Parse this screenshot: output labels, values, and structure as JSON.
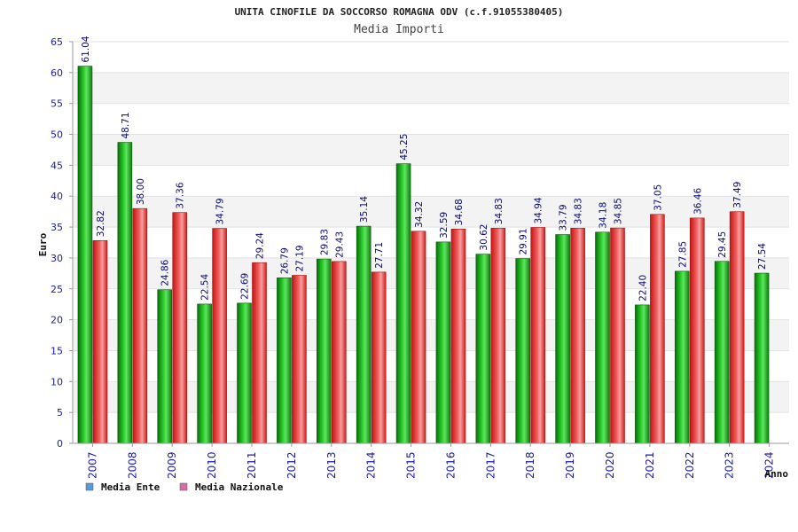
{
  "chart_data": {
    "type": "bar",
    "title": "UNITA CINOFILE DA SOCCORSO ROMAGNA ODV (c.f.91055380405)",
    "subtitle": "Media Importi",
    "xlabel": "Anno",
    "ylabel": "Euro",
    "ylim": [
      0,
      65
    ],
    "yticks": [
      0,
      5,
      10,
      15,
      20,
      25,
      30,
      35,
      40,
      45,
      50,
      55,
      60,
      65
    ],
    "grid": true,
    "legend_position": "bottom-left",
    "categories": [
      "2007",
      "2008",
      "2009",
      "2010",
      "2011",
      "2012",
      "2013",
      "2014",
      "2015",
      "2016",
      "2017",
      "2018",
      "2019",
      "2020",
      "2021",
      "2022",
      "2023",
      "2024"
    ],
    "series": [
      {
        "name": "Media Ente",
        "color": "#22b022",
        "legend_color": "#5b9bd5",
        "values": [
          61.04,
          48.71,
          24.86,
          22.54,
          22.69,
          26.79,
          29.83,
          35.14,
          45.25,
          32.59,
          30.62,
          29.91,
          33.79,
          34.18,
          22.4,
          27.85,
          29.45,
          27.54
        ],
        "labels": [
          "61.04",
          "48.71",
          "24.86",
          "22.54",
          "22.69",
          "26.79",
          "29.83",
          "35.14",
          "45.25",
          "32.59",
          "30.62",
          "29.91",
          "33.79",
          "34.18",
          "22.40",
          "27.85",
          "29.45",
          "27.54"
        ]
      },
      {
        "name": "Media Nazionale",
        "color": "#e02828",
        "legend_color": "#d66fa6",
        "values": [
          32.82,
          38.0,
          37.36,
          34.79,
          29.24,
          27.19,
          29.43,
          27.71,
          34.32,
          34.68,
          34.83,
          34.94,
          34.83,
          34.85,
          37.05,
          36.46,
          37.49,
          null
        ],
        "labels": [
          "32.82",
          "38.00",
          "37.36",
          "34.79",
          "29.24",
          "27.19",
          "29.43",
          "27.71",
          "34.32",
          "34.68",
          "34.83",
          "34.94",
          "34.83",
          "34.85",
          "37.05",
          "36.46",
          "37.49",
          null
        ]
      }
    ]
  }
}
